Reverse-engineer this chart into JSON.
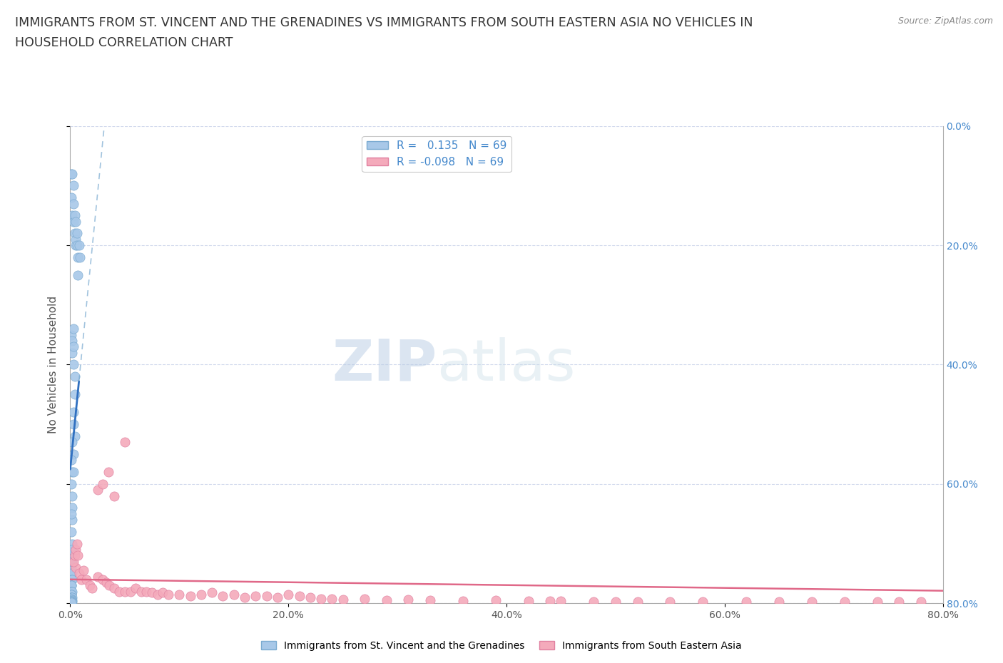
{
  "title_line1": "IMMIGRANTS FROM ST. VINCENT AND THE GRENADINES VS IMMIGRANTS FROM SOUTH EASTERN ASIA NO VEHICLES IN",
  "title_line2": "HOUSEHOLD CORRELATION CHART",
  "source_text": "Source: ZipAtlas.com",
  "ylabel": "No Vehicles in Household",
  "r_blue": 0.135,
  "r_pink": -0.098,
  "n_blue": 69,
  "n_pink": 69,
  "blue_dot_color": "#a8c8e8",
  "blue_dot_edge": "#7aaad0",
  "pink_dot_color": "#f4aabb",
  "pink_dot_edge": "#e080a0",
  "blue_line_color": "#3070c0",
  "blue_dash_color": "#7aaad0",
  "pink_line_color": "#e06888",
  "watermark_zip": "ZIP",
  "watermark_atlas": "atlas",
  "grid_color": "#d0d8ec",
  "background_color": "#ffffff",
  "right_tick_color": "#4488cc",
  "title_fontsize": 12.5,
  "tick_fontsize": 10,
  "axis_label_fontsize": 11,
  "blue_x": [
    0.001,
    0.001,
    0.002,
    0.002,
    0.003,
    0.003,
    0.003,
    0.004,
    0.004,
    0.005,
    0.005,
    0.005,
    0.006,
    0.006,
    0.007,
    0.007,
    0.008,
    0.009,
    0.001,
    0.002,
    0.002,
    0.003,
    0.003,
    0.003,
    0.004,
    0.004,
    0.003,
    0.004,
    0.003,
    0.003,
    0.002,
    0.002,
    0.001,
    0.001,
    0.002,
    0.003,
    0.002,
    0.002,
    0.001,
    0.001,
    0.002,
    0.001,
    0.001,
    0.001,
    0.002,
    0.002,
    0.001,
    0.001,
    0.002,
    0.001,
    0.001,
    0.001,
    0.001,
    0.001,
    0.002,
    0.001,
    0.001,
    0.001,
    0.001,
    0.002,
    0.001,
    0.001,
    0.002,
    0.001,
    0.001,
    0.002,
    0.001,
    0.001,
    0.001
  ],
  "blue_y": [
    0.72,
    0.68,
    0.72,
    0.65,
    0.7,
    0.64,
    0.67,
    0.62,
    0.65,
    0.6,
    0.64,
    0.61,
    0.62,
    0.6,
    0.58,
    0.55,
    0.6,
    0.58,
    0.45,
    0.44,
    0.42,
    0.46,
    0.43,
    0.4,
    0.38,
    0.35,
    0.32,
    0.28,
    0.3,
    0.25,
    0.27,
    0.22,
    0.24,
    0.2,
    0.18,
    0.22,
    0.16,
    0.14,
    0.15,
    0.12,
    0.1,
    0.08,
    0.09,
    0.06,
    0.07,
    0.05,
    0.05,
    0.04,
    0.04,
    0.03,
    0.03,
    0.03,
    0.02,
    0.02,
    0.02,
    0.015,
    0.015,
    0.01,
    0.01,
    0.01,
    0.008,
    0.006,
    0.005,
    0.004,
    0.004,
    0.003,
    0.003,
    0.002,
    0.002
  ],
  "pink_x": [
    0.005,
    0.008,
    0.01,
    0.012,
    0.015,
    0.018,
    0.02,
    0.025,
    0.03,
    0.033,
    0.036,
    0.04,
    0.045,
    0.05,
    0.055,
    0.06,
    0.065,
    0.07,
    0.075,
    0.08,
    0.085,
    0.09,
    0.1,
    0.11,
    0.12,
    0.13,
    0.14,
    0.15,
    0.16,
    0.17,
    0.18,
    0.19,
    0.2,
    0.21,
    0.22,
    0.23,
    0.24,
    0.25,
    0.27,
    0.29,
    0.31,
    0.33,
    0.36,
    0.39,
    0.42,
    0.44,
    0.45,
    0.48,
    0.5,
    0.52,
    0.55,
    0.58,
    0.62,
    0.65,
    0.68,
    0.71,
    0.74,
    0.76,
    0.78,
    0.003,
    0.004,
    0.005,
    0.006,
    0.007,
    0.025,
    0.03,
    0.035,
    0.04,
    0.05
  ],
  "pink_y": [
    0.06,
    0.05,
    0.04,
    0.055,
    0.04,
    0.03,
    0.025,
    0.045,
    0.04,
    0.035,
    0.03,
    0.025,
    0.02,
    0.02,
    0.02,
    0.025,
    0.02,
    0.02,
    0.018,
    0.015,
    0.018,
    0.015,
    0.015,
    0.012,
    0.015,
    0.018,
    0.012,
    0.015,
    0.01,
    0.012,
    0.012,
    0.01,
    0.015,
    0.012,
    0.01,
    0.008,
    0.008,
    0.006,
    0.007,
    0.005,
    0.006,
    0.005,
    0.004,
    0.005,
    0.004,
    0.004,
    0.004,
    0.003,
    0.003,
    0.003,
    0.003,
    0.003,
    0.003,
    0.003,
    0.003,
    0.003,
    0.003,
    0.003,
    0.003,
    0.07,
    0.08,
    0.09,
    0.1,
    0.08,
    0.19,
    0.2,
    0.22,
    0.18,
    0.27
  ],
  "xlim": [
    0.0,
    0.8
  ],
  "ylim": [
    0.0,
    0.8
  ],
  "xticks": [
    0.0,
    0.2,
    0.4,
    0.6,
    0.8
  ],
  "yticks": [
    0.0,
    0.2,
    0.4,
    0.6,
    0.8
  ],
  "xticklabels": [
    "0.0%",
    "20.0%",
    "40.0%",
    "60.0%",
    "80.0%"
  ],
  "right_yticklabels": [
    "80.0%",
    "60.0%",
    "40.0%",
    "20.0%",
    "0.0%"
  ]
}
